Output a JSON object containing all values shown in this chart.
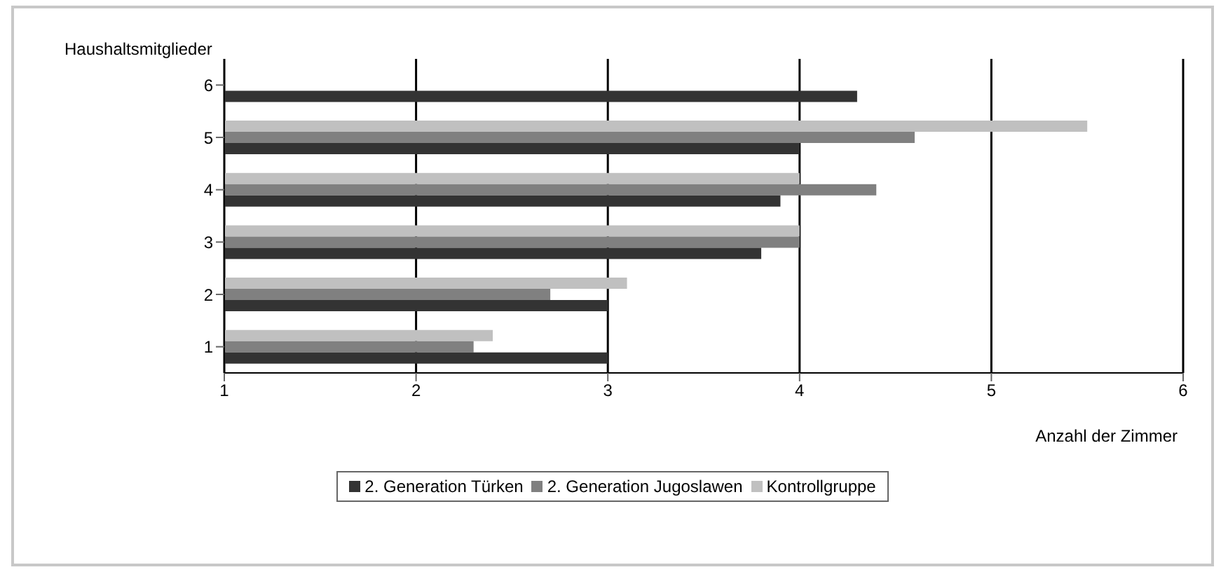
{
  "chart_data": {
    "type": "bar",
    "orientation": "horizontal",
    "ylabel": "Haushaltsmitglieder",
    "xlabel": "Anzahl der Zimmer",
    "categories": [
      "6",
      "5",
      "4",
      "3",
      "2",
      "1"
    ],
    "series": [
      {
        "name": "2. Generation Türken",
        "color": "#333333",
        "values": [
          4.3,
          4.0,
          3.9,
          3.8,
          3.0,
          3.0
        ]
      },
      {
        "name": "2. Generation Jugoslawen",
        "color": "#808080",
        "values": [
          null,
          4.6,
          4.4,
          4.0,
          2.7,
          2.3
        ]
      },
      {
        "name": "Kontrollgruppe",
        "color": "#c0c0c0",
        "values": [
          null,
          5.5,
          4.0,
          4.0,
          3.1,
          2.4
        ]
      }
    ],
    "xlim": [
      1,
      6
    ],
    "xticks": [
      1,
      2,
      3,
      4,
      5,
      6
    ],
    "grid": "x",
    "legend": "bottom"
  }
}
